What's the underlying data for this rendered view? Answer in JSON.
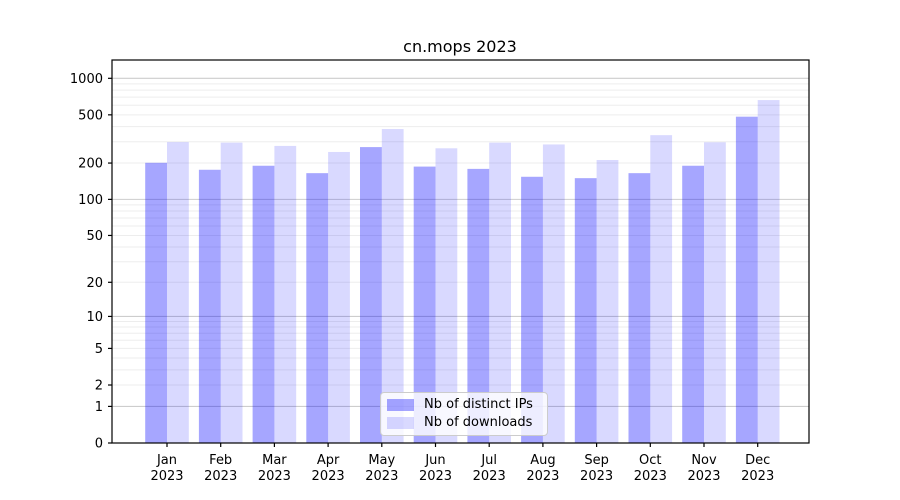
{
  "chart_data": {
    "type": "bar",
    "title": "cn.mops 2023",
    "categories": [
      "Jan 2023",
      "Feb 2023",
      "Mar 2023",
      "Apr 2023",
      "May 2023",
      "Jun 2023",
      "Jul 2023",
      "Aug 2023",
      "Sep 2023",
      "Oct 2023",
      "Nov 2023",
      "Dec 2023"
    ],
    "series": [
      {
        "name": "Nb of distinct IPs",
        "color": "#0000ff",
        "alpha": 0.35,
        "values": [
          201,
          176,
          190,
          165,
          271,
          187,
          179,
          154,
          150,
          165,
          190,
          483
        ]
      },
      {
        "name": "Nb of downloads",
        "color": "#0000ff",
        "alpha": 0.15,
        "values": [
          298,
          295,
          277,
          247,
          382,
          265,
          295,
          285,
          212,
          340,
          297,
          662
        ]
      }
    ],
    "xlabel": "",
    "ylabel": "",
    "yscale": "log1p",
    "ylim": [
      0,
      1415
    ],
    "yticks": [
      0,
      1,
      2,
      5,
      10,
      20,
      50,
      100,
      200,
      500,
      1000
    ],
    "major_gridlines": [
      1,
      10,
      100,
      1000
    ],
    "minor_gridlines": [
      2,
      3,
      4,
      5,
      6,
      7,
      8,
      9,
      20,
      30,
      40,
      60,
      70,
      80,
      90,
      200,
      300,
      400,
      600,
      700,
      800,
      900,
      500,
      50
    ],
    "grid": true,
    "legend_position": "lower center",
    "colors": {
      "axis": "#000000",
      "major_grid": "#cdcdcd",
      "minor_grid": "#ededed",
      "background": "#ffffff"
    }
  }
}
